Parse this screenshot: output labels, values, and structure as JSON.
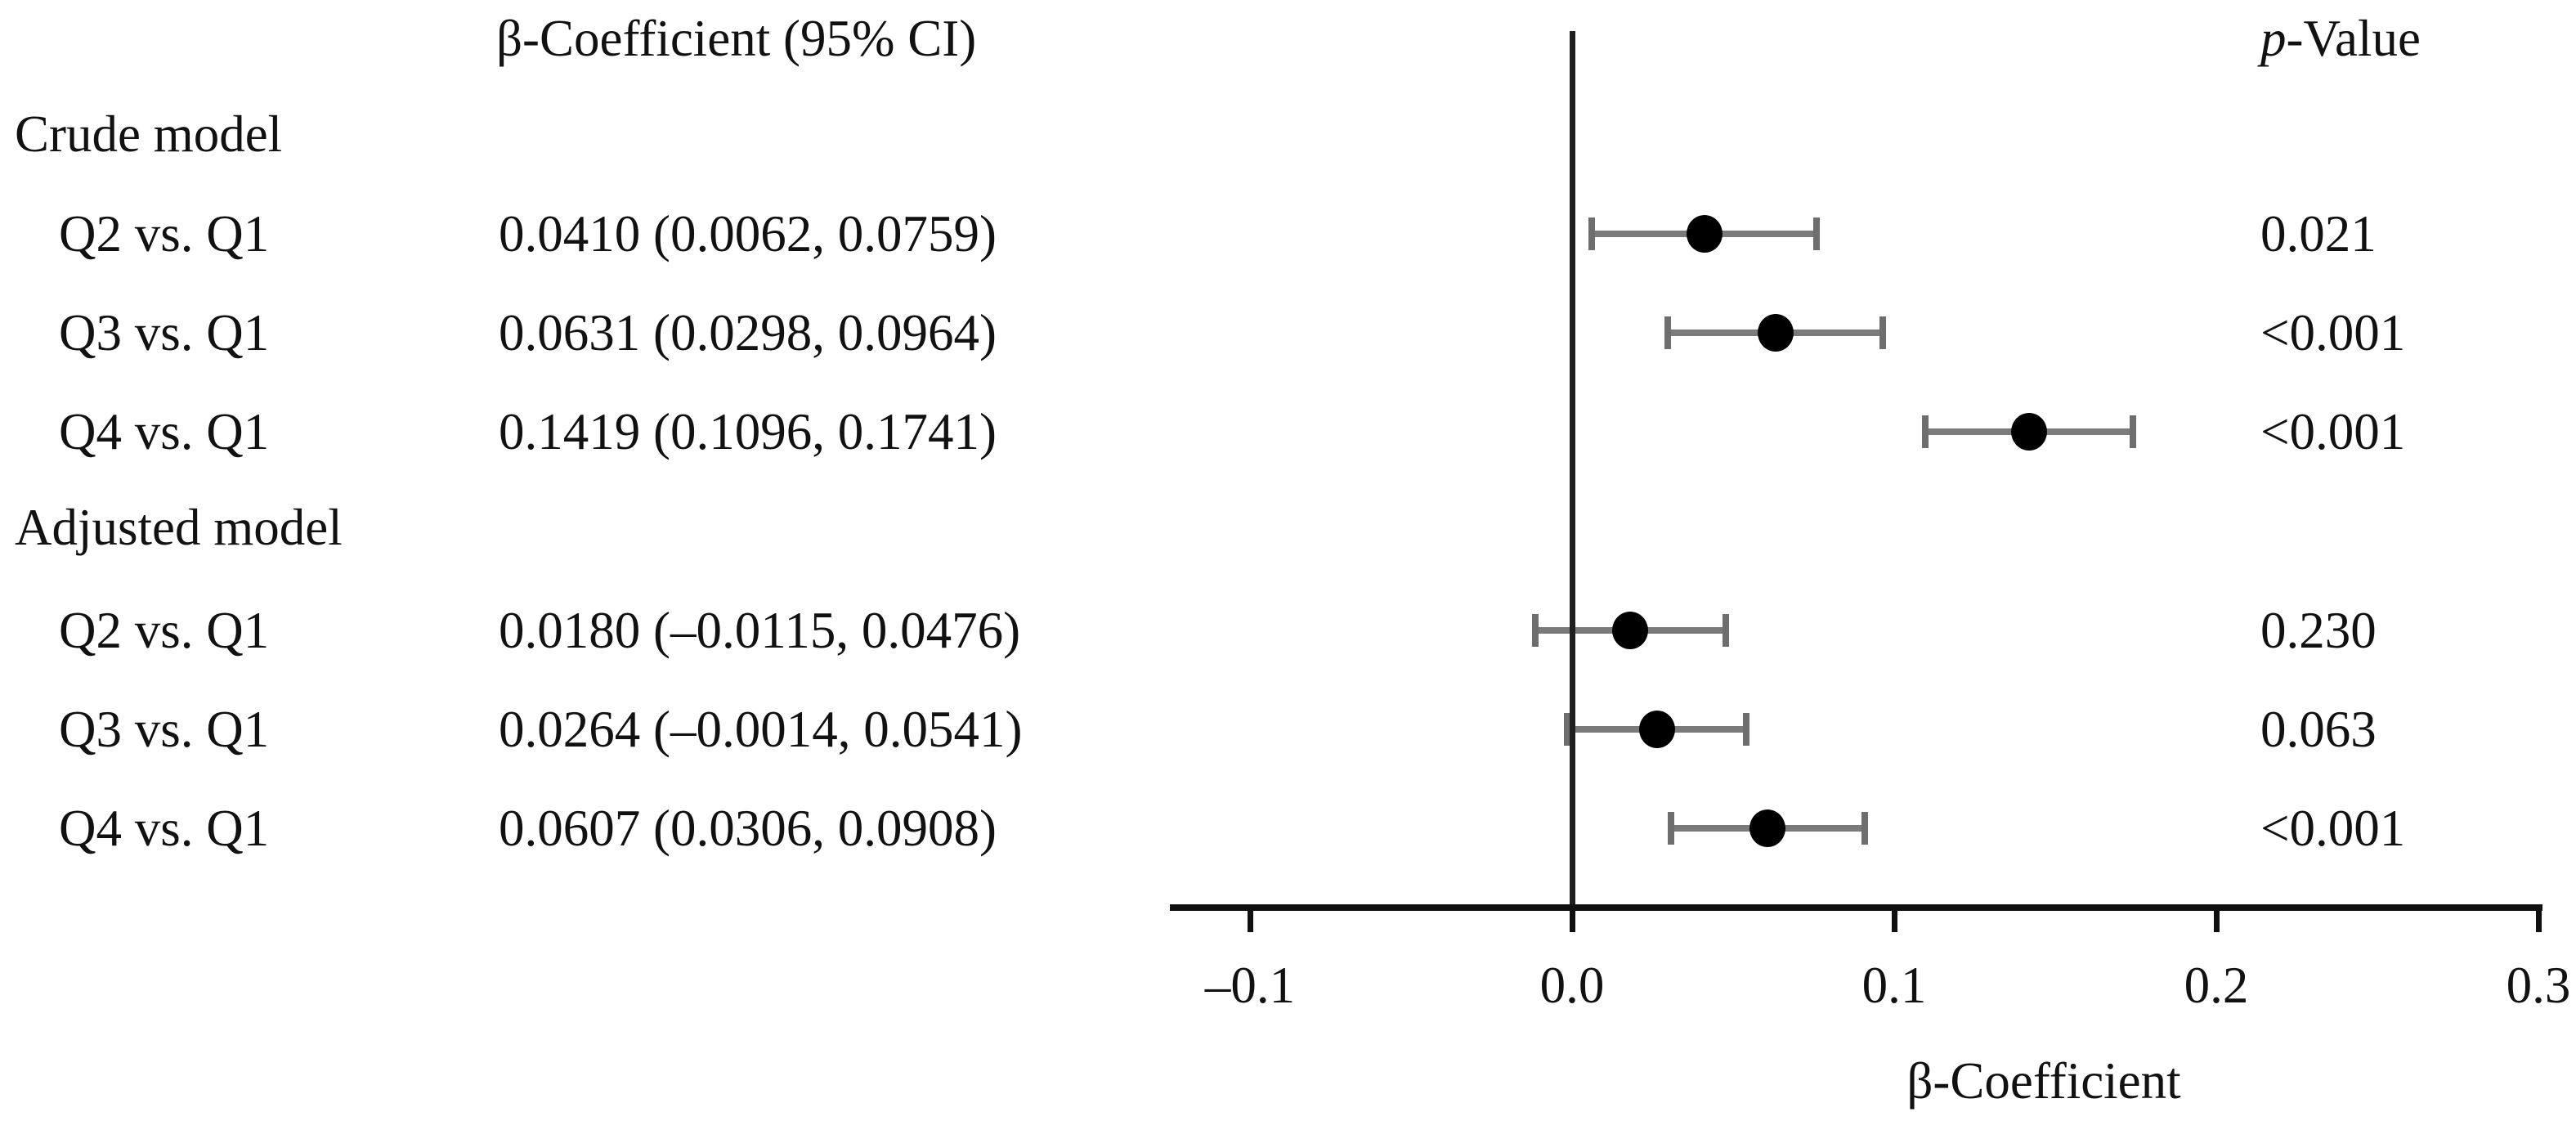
{
  "header": {
    "beta_col": "β-Coefficient (95% CI)",
    "p_col_italic": "p",
    "p_col_rest": "-Value"
  },
  "chart_data": {
    "type": "forest",
    "title": "",
    "xlabel": "β-Coefficient",
    "xlim": [
      -0.125,
      0.301
    ],
    "x_ticks": [
      -0.1,
      0.0,
      0.1,
      0.2,
      0.3
    ],
    "x_tick_labels": [
      "–0.1",
      "0.0",
      "0.1",
      "0.2",
      "0.3"
    ],
    "reference_line_x": 0.0,
    "grid": false,
    "point_color": "#000000",
    "error_bar_color": "#7a7a7a",
    "groups": [
      {
        "label": "Crude model",
        "rows": [
          {
            "label": "Q2 vs. Q1",
            "beta": 0.041,
            "ci_low": 0.0062,
            "ci_high": 0.0759,
            "display": "0.0410 (0.0062, 0.0759)",
            "p": "0.021"
          },
          {
            "label": "Q3 vs. Q1",
            "beta": 0.0631,
            "ci_low": 0.0298,
            "ci_high": 0.0964,
            "display": "0.0631 (0.0298, 0.0964)",
            "p": "<0.001"
          },
          {
            "label": "Q4 vs. Q1",
            "beta": 0.1419,
            "ci_low": 0.1096,
            "ci_high": 0.1741,
            "display": "0.1419 (0.1096, 0.1741)",
            "p": "<0.001"
          }
        ]
      },
      {
        "label": "Adjusted model",
        "rows": [
          {
            "label": "Q2 vs. Q1",
            "beta": 0.018,
            "ci_low": -0.0115,
            "ci_high": 0.0476,
            "display": "0.0180 (–0.0115, 0.0476)",
            "p": "0.230"
          },
          {
            "label": "Q3 vs. Q1",
            "beta": 0.0264,
            "ci_low": -0.0014,
            "ci_high": 0.0541,
            "display": "0.0264 (–0.0014, 0.0541)",
            "p": "0.063"
          },
          {
            "label": "Q4 vs. Q1",
            "beta": 0.0607,
            "ci_low": 0.0306,
            "ci_high": 0.0908,
            "display": "0.0607 (0.0306, 0.0908)",
            "p": "<0.001"
          }
        ]
      }
    ]
  }
}
